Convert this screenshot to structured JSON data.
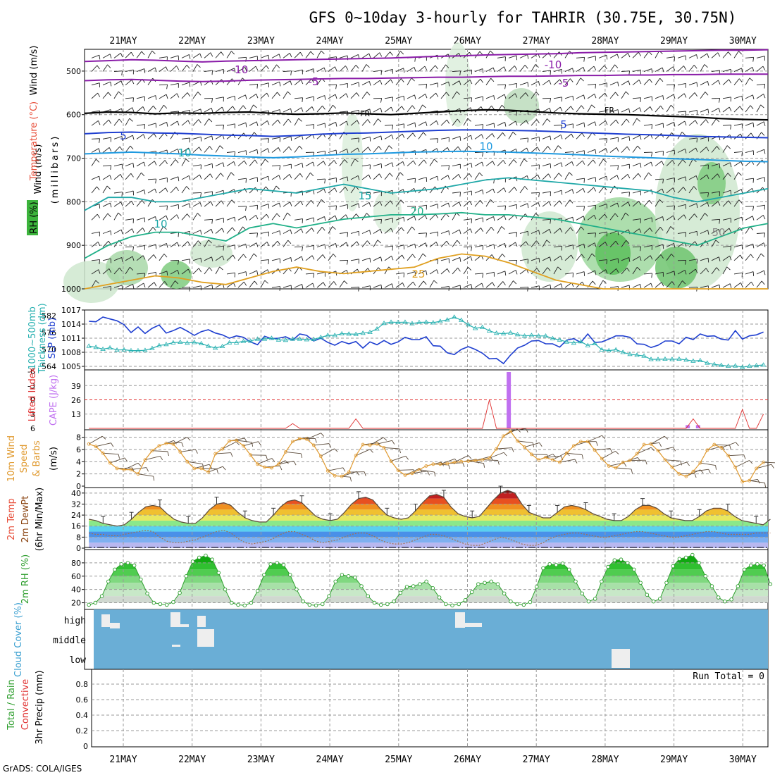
{
  "title": "GFS 0~10day 3-hourly for TAHRIR (30.75E, 30.75N)",
  "credit": "GrADS: COLA/IGES",
  "dates": [
    "21MAY",
    "22MAY",
    "23MAY",
    "24MAY",
    "25MAY",
    "26MAY",
    "27MAY",
    "28MAY",
    "29MAY",
    "30MAY"
  ],
  "run_total": "Run Total = 0",
  "colors": {
    "wind_label": "#000000",
    "temperature_label": "#e8503c",
    "rh_label": "#2e9e2e",
    "slp_line": "#1f3fd0",
    "thickness_line": "#27b0b0",
    "cape_bar": "#c070f0",
    "lifted_index_line": "#e03030",
    "wind_speed_line": "#e09a30",
    "rh2m_fill": "#3cb43c",
    "cloud_bg": "#6aaed6",
    "cloud_box": "#f0f0f0"
  },
  "chart_data": [
    {
      "id": "upper_air",
      "type": "heatmap",
      "ylabel_parts": [
        "Wind (m/s)",
        "Temperature (°C)",
        "RH (%)"
      ],
      "ylabel_center": "(millibars)",
      "yticks": [
        "500",
        "600",
        "700",
        "800",
        "900",
        "1000"
      ],
      "ylim": [
        450,
        1000
      ],
      "contour_labels": [
        "-10",
        "-5",
        "FR",
        "5",
        "10",
        "15",
        "20",
        "25",
        "-10",
        "-5",
        "FR",
        "5",
        "10",
        "10",
        "15",
        "50"
      ],
      "temperature_isolines": [
        {
          "name": "-10",
          "values": [
            478,
            476,
            474,
            475,
            477,
            479,
            477,
            476,
            475,
            474,
            473,
            472,
            471,
            470,
            468,
            466,
            465,
            463,
            462,
            461,
            460,
            458,
            457,
            456,
            455,
            454,
            453,
            452,
            452,
            451
          ]
        },
        {
          "name": "-5",
          "values": [
            522,
            520,
            519,
            521,
            523,
            524,
            523,
            521,
            520,
            519,
            518,
            517,
            517,
            516,
            515,
            514,
            514,
            513,
            512,
            512,
            511,
            510,
            510,
            509,
            509,
            508,
            508,
            507,
            507,
            507
          ]
        },
        {
          "name": "FR",
          "values": [
            597,
            594,
            595,
            598,
            596,
            597,
            595,
            594,
            597,
            599,
            598,
            596,
            598,
            600,
            597,
            594,
            591,
            589,
            590,
            593,
            596,
            598,
            599,
            600,
            602,
            604,
            606,
            609,
            611,
            612
          ]
        },
        {
          "name": "5",
          "values": [
            644,
            641,
            640,
            642,
            643,
            645,
            647,
            648,
            650,
            648,
            645,
            643,
            642,
            640,
            638,
            636,
            635,
            635,
            636,
            637,
            639,
            641,
            643,
            645,
            646,
            648,
            650,
            651,
            652,
            653
          ]
        },
        {
          "name": "10",
          "values": [
            690,
            688,
            686,
            688,
            690,
            693,
            695,
            697,
            699,
            697,
            694,
            691,
            690,
            688,
            686,
            685,
            684,
            685,
            686,
            688,
            690,
            692,
            695,
            697,
            699,
            701,
            703,
            705,
            707,
            708
          ]
        }
      ]
    },
    {
      "id": "slp_thickness",
      "type": "line",
      "ylabel_left": "SLP (mb)",
      "ylabel_left2": "Thickness (dm)",
      "ylabel_left3": "1000~500mb",
      "yticks_left": [
        "582",
        "576",
        "570",
        "564"
      ],
      "yticks_right": [
        "1017",
        "1014",
        "1011",
        "1008",
        "1005"
      ],
      "series": [
        {
          "name": "SLP (mb)",
          "values": [
            1014.6,
            1014.5,
            1015.5,
            1015.1,
            1014.7,
            1013.9,
            1012.2,
            1013.4,
            1012.0,
            1013.1,
            1013.8,
            1012.1,
            1012.6,
            1013.3,
            1012.5,
            1011.6,
            1012.4,
            1012.8,
            1012.1,
            1011.7,
            1011.0,
            1011.5,
            1011.2,
            1010.2,
            1009.6,
            1011.4,
            1010.9,
            1011.0,
            1011.3,
            1010.6,
            1011.9,
            1011.6,
            1010.4,
            1011.0,
            1010.1,
            1009.5,
            1010.3,
            1009.8,
            1010.3,
            1008.9,
            1010.2,
            1009.6,
            1010.5,
            1009.7,
            1010.2,
            1011.2,
            1010.7,
            1010.7,
            1011.3,
            1009.4,
            1009.3,
            1007.9,
            1007.5,
            1008.6,
            1009.2,
            1008.6,
            1007.8,
            1006.6,
            1006.7,
            1005.6,
            1007.4,
            1008.9,
            1009.5,
            1010.4,
            1010.5,
            1009.8,
            1009.8,
            1009.1,
            1010.6,
            1010.9,
            1010.1,
            1011.9,
            1010.1,
            1010.2,
            1010.8,
            1011.5,
            1011.5,
            1011.2,
            1009.8,
            1009.7,
            1009.0,
            1009.5,
            1010.4,
            1010.4,
            1009.8,
            1011.2,
            1010.7,
            1011.9,
            1011.4,
            1011.5,
            1010.8,
            1010.6,
            1012.6,
            1010.8,
            1011.5,
            1011.7,
            1012.3
          ]
        },
        {
          "name": "Thickness (dm)",
          "values": [
            571.2,
            570.8,
            570.1,
            570.6,
            569.8,
            569.9,
            569.6,
            569.6,
            569.7,
            570.4,
            571.4,
            571.8,
            572.4,
            572.6,
            572.3,
            572.5,
            572.1,
            571.2,
            570.5,
            571.1,
            572.4,
            572.4,
            572.9,
            573.0,
            573.7,
            573.7,
            574.0,
            573.4,
            573.3,
            573.7,
            573.7,
            573.5,
            573.6,
            574.3,
            575.0,
            575.0,
            575.6,
            575.5,
            575.4,
            575.8,
            576.1,
            577.3,
            579.3,
            579.7,
            579.6,
            579.7,
            579.2,
            579.6,
            579.7,
            579.5,
            580.0,
            580.5,
            581.5,
            580.4,
            578.8,
            577.5,
            577.9,
            576.6,
            575.8,
            575.6,
            575.9,
            575.3,
            574.8,
            575.0,
            574.8,
            574.8,
            573.9,
            573.4,
            572.7,
            572.3,
            572.8,
            571.4,
            572.1,
            569.9,
            569.6,
            569.9,
            569.0,
            568.3,
            568.0,
            567.7,
            566.5,
            566.5,
            566.6,
            566.5,
            566.6,
            566.3,
            565.9,
            566.1,
            565.2,
            564.7,
            564.4,
            564.1,
            564.2,
            563.7,
            564.1,
            564.3,
            564.5
          ]
        }
      ]
    },
    {
      "id": "cape_li",
      "type": "bar",
      "ylabel_left": "Lifted Index",
      "ylabel_right": "CAPE (J/kg)",
      "yticks_left": [
        "-6",
        "-3",
        "0",
        "3",
        "6"
      ],
      "yticks_right": [
        "39",
        "26",
        "13"
      ],
      "series": [
        {
          "name": "CAPE (J/kg)",
          "bars": [
            {
              "x": 26.6,
              "value": 52
            },
            {
              "x": 29.2,
              "value": 3
            },
            {
              "x": 29.35,
              "value": 3
            }
          ]
        },
        {
          "name": "Lifted Index",
          "values": [
            6,
            6,
            6,
            6,
            6,
            6,
            6,
            6,
            6,
            6,
            6,
            6,
            6,
            6,
            6,
            6,
            6,
            6,
            6,
            6,
            6,
            6,
            6,
            5.5,
            6,
            6,
            6,
            6,
            6,
            6,
            6,
            6,
            6,
            6,
            6,
            6,
            6,
            6,
            6,
            6,
            6,
            6,
            6,
            6,
            6,
            6,
            6,
            6,
            6,
            6,
            6,
            6,
            6,
            6,
            6,
            6,
            6,
            6,
            6,
            6,
            6,
            6,
            6,
            6,
            6,
            6,
            6,
            6,
            6,
            6,
            6,
            6,
            6,
            6,
            6,
            6,
            6,
            6,
            6,
            6,
            6,
            6,
            6,
            6,
            6,
            6,
            6,
            6,
            6,
            6,
            6,
            6,
            6,
            6,
            6,
            6,
            6
          ]
        }
      ]
    },
    {
      "id": "wind10m",
      "type": "line",
      "ylabel": "10m Wind Speed & Barbs (m/s)",
      "ylabel_parts": [
        "10m Wind",
        "Speed",
        "& Barbs",
        "(m/s)"
      ],
      "yticks": [
        "0",
        "2",
        "4",
        "6",
        "8"
      ],
      "ylim": [
        0,
        9
      ],
      "series": [
        {
          "name": "Speed",
          "values": [
            6.9,
            6.5,
            5.4,
            3.8,
            2.9,
            2.7,
            2.7,
            2.0,
            4.3,
            5.8,
            6.6,
            7.0,
            6.9,
            5.6,
            4.0,
            2.9,
            2.9,
            2.3,
            5.3,
            6.1,
            7.4,
            7.5,
            6.6,
            5.1,
            3.6,
            3.1,
            3.0,
            3.6,
            5.6,
            7.3,
            7.8,
            7.7,
            6.7,
            4.9,
            2.5,
            1.7,
            1.6,
            2.3,
            5.0,
            6.8,
            6.7,
            6.9,
            6.3,
            4.1,
            2.6,
            1.8,
            2.1,
            2.7,
            3.3,
            3.6,
            3.6,
            3.7,
            3.9,
            4.0,
            4.1,
            4.2,
            4.3,
            4.6,
            6.1,
            8.2,
            9.0,
            7.4,
            6.4,
            5.2,
            4.3,
            4.7,
            4.3,
            3.9,
            5.4,
            6.6,
            7.3,
            7.3,
            5.9,
            4.5,
            3.3,
            3.0,
            3.9,
            4.2,
            5.3,
            6.8,
            6.9,
            5.8,
            4.3,
            3.1,
            2.0,
            1.6,
            2.4,
            3.8,
            5.9,
            6.8,
            6.3,
            5.0,
            3.1,
            0.7,
            0.9,
            2.9,
            3.9
          ]
        }
      ]
    },
    {
      "id": "temp2m",
      "type": "area",
      "ylabel_parts": [
        "2m Temp",
        "2m DewPt",
        "(6hr Min/Max)"
      ],
      "yticks": [
        "0",
        "8",
        "16",
        "24",
        "32",
        "40"
      ],
      "ylim": [
        0,
        44
      ],
      "series": [
        {
          "name": "2m Temp",
          "values": [
            21,
            20,
            18,
            17,
            16,
            17,
            21,
            26,
            30,
            31,
            30,
            25,
            21,
            19,
            18,
            18,
            22,
            28,
            32,
            33,
            31,
            26,
            22,
            20,
            19,
            19,
            24,
            30,
            34,
            35,
            33,
            28,
            23,
            21,
            20,
            21,
            26,
            32,
            36,
            37,
            35,
            29,
            24,
            22,
            21,
            22,
            27,
            33,
            38,
            39,
            37,
            30,
            25,
            23,
            22,
            23,
            29,
            35,
            40,
            42,
            40,
            32,
            26,
            24,
            22,
            22,
            26,
            30,
            31,
            30,
            28,
            25,
            23,
            21,
            20,
            20,
            23,
            28,
            31,
            31,
            29,
            25,
            22,
            21,
            20,
            20,
            23,
            27,
            29,
            29,
            27,
            23,
            20,
            19,
            18,
            17,
            21
          ]
        },
        {
          "name": "2m DewPt",
          "values": [
            11,
            10,
            10,
            9,
            9,
            10,
            11,
            12,
            13,
            12,
            8,
            5,
            4,
            4,
            5,
            6,
            8,
            10,
            12,
            13,
            11,
            7,
            4,
            3,
            4,
            5,
            7,
            10,
            12,
            12,
            10,
            8,
            5,
            4,
            5,
            6,
            8,
            10,
            11,
            11,
            9,
            6,
            4,
            3,
            3,
            4,
            6,
            8,
            10,
            10,
            9,
            7,
            5,
            3,
            2,
            2,
            4,
            6,
            8,
            7,
            5,
            3,
            2,
            2,
            4,
            7,
            9,
            10,
            11,
            11,
            10,
            9,
            8,
            8,
            9,
            10,
            11,
            12,
            12,
            11,
            10,
            9,
            8,
            8,
            9,
            10,
            11,
            12,
            12,
            11,
            10,
            10,
            10,
            10,
            11,
            11,
            11
          ]
        }
      ]
    },
    {
      "id": "rh2m",
      "type": "area",
      "ylabel": "2m RH (%)",
      "yticks": [
        "20",
        "40",
        "60",
        "80"
      ],
      "ylim": [
        10,
        100
      ],
      "series": [
        {
          "name": "2m RH",
          "values": [
            17,
            20,
            30,
            52,
            70,
            78,
            80,
            76,
            55,
            34,
            20,
            18,
            17,
            21,
            35,
            60,
            82,
            88,
            91,
            85,
            65,
            40,
            20,
            17,
            16,
            20,
            38,
            62,
            78,
            80,
            77,
            62,
            40,
            22,
            17,
            16,
            18,
            30,
            52,
            62,
            60,
            58,
            45,
            30,
            20,
            17,
            18,
            22,
            35,
            44,
            45,
            48,
            52,
            42,
            28,
            18,
            16,
            18,
            24,
            36,
            48,
            50,
            52,
            48,
            34,
            22,
            18,
            17,
            21,
            44,
            72,
            78,
            77,
            79,
            70,
            52,
            34,
            22,
            26,
            52,
            74,
            84,
            85,
            80,
            70,
            50,
            32,
            22,
            26,
            50,
            75,
            86,
            88,
            92,
            80,
            60,
            45,
            28,
            22,
            25,
            45,
            70,
            76,
            78,
            76,
            48
          ]
        }
      ]
    },
    {
      "id": "cloud",
      "type": "heatmap",
      "ylabel": "Cloud Cover (%)",
      "yticks": [
        "high",
        "middle",
        "low"
      ]
    },
    {
      "id": "precip",
      "type": "bar",
      "ylabel_parts": [
        "3hr Precip (mm)",
        "Total / Rain",
        "Convective"
      ],
      "yticks": [
        "0",
        "0.2",
        "0.4",
        "0.6",
        "0.8"
      ],
      "ylim": [
        0,
        1
      ]
    }
  ]
}
